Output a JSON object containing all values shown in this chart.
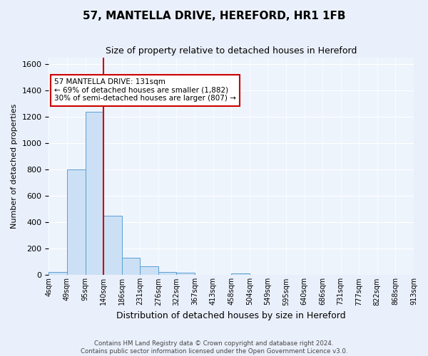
{
  "title": "57, MANTELLA DRIVE, HEREFORD, HR1 1FB",
  "subtitle": "Size of property relative to detached houses in Hereford",
  "xlabel": "Distribution of detached houses by size in Hereford",
  "ylabel": "Number of detached properties",
  "bin_labels": [
    "4sqm",
    "49sqm",
    "95sqm",
    "140sqm",
    "186sqm",
    "231sqm",
    "276sqm",
    "322sqm",
    "367sqm",
    "413sqm",
    "458sqm",
    "504sqm",
    "549sqm",
    "595sqm",
    "640sqm",
    "686sqm",
    "731sqm",
    "777sqm",
    "822sqm",
    "868sqm",
    "913sqm"
  ],
  "bar_values": [
    25,
    800,
    1240,
    450,
    130,
    65,
    25,
    18,
    0,
    0,
    15,
    0,
    0,
    0,
    0,
    0,
    0,
    0,
    0,
    0
  ],
  "bar_color": "#cce0f5",
  "bar_edge_color": "#5a9fd4",
  "red_line_x": 3.0,
  "red_line_color": "#cc0000",
  "annotation_text": "57 MANTELLA DRIVE: 131sqm\n← 69% of detached houses are smaller (1,882)\n30% of semi-detached houses are larger (807) →",
  "annotation_box_color": "#ffffff",
  "annotation_box_edge": "#cc0000",
  "ylim": [
    0,
    1650
  ],
  "yticks": [
    0,
    200,
    400,
    600,
    800,
    1000,
    1200,
    1400,
    1600
  ],
  "footer_text": "Contains HM Land Registry data © Crown copyright and database right 2024.\nContains public sector information licensed under the Open Government Licence v3.0.",
  "bg_color": "#eaf0fb",
  "plot_bg_color": "#eef4fc"
}
